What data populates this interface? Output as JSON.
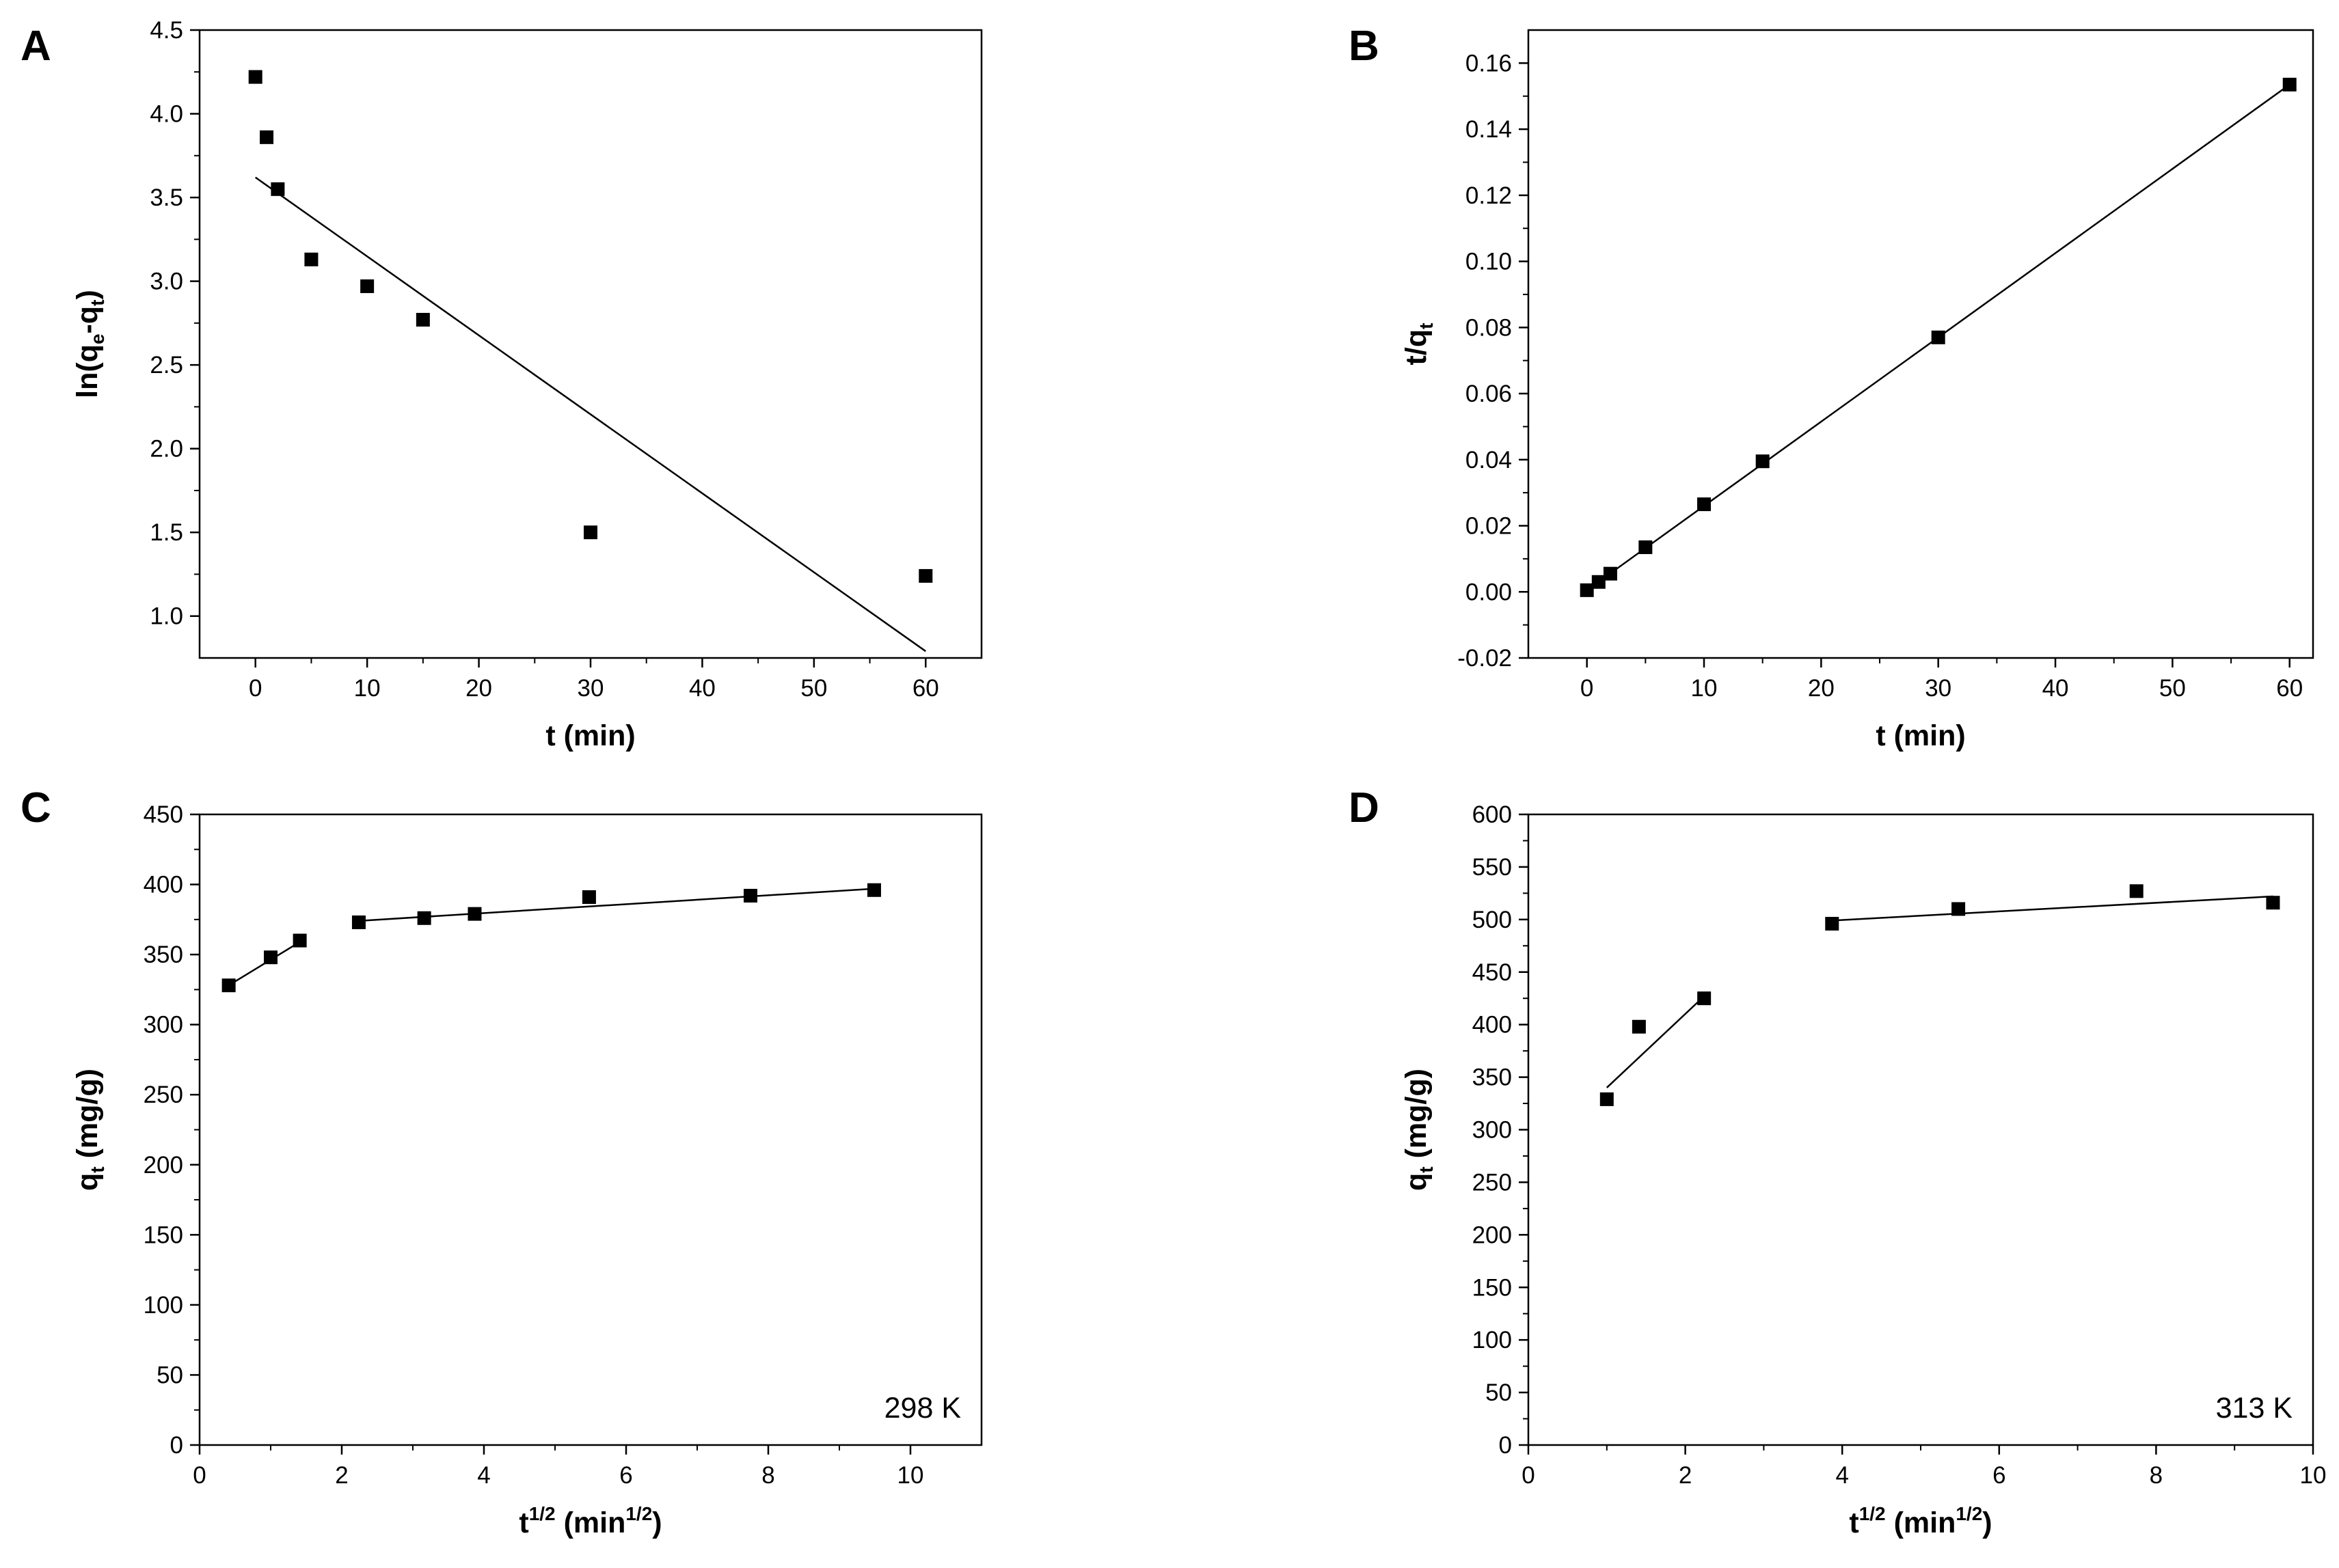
{
  "figure": {
    "background": "#ffffff",
    "marker_color": "#000000",
    "line_color": "#000000"
  },
  "chart_data": [
    {
      "panel": "A",
      "type": "scatter",
      "xlabel": "t (min)",
      "ylabel_main": "ln(q",
      "ylabel_sub1": "e",
      "ylabel_mid": "-q",
      "ylabel_sub2": "t",
      "ylabel_end": ")",
      "xlim": [
        -5,
        65
      ],
      "ylim": [
        0.75,
        4.5
      ],
      "xticks": [
        0,
        10,
        20,
        30,
        40,
        50,
        60
      ],
      "yticks": [
        1.0,
        1.5,
        2.0,
        2.5,
        3.0,
        3.5,
        4.0,
        4.5
      ],
      "ytick_decimals": 1,
      "points": [
        {
          "x": 0,
          "y": 4.22
        },
        {
          "x": 1,
          "y": 3.86
        },
        {
          "x": 2,
          "y": 3.55
        },
        {
          "x": 5,
          "y": 3.13
        },
        {
          "x": 10,
          "y": 2.97
        },
        {
          "x": 15,
          "y": 2.77
        },
        {
          "x": 30,
          "y": 1.5
        },
        {
          "x": 60,
          "y": 1.24
        }
      ],
      "fit_lines": [
        {
          "x": [
            0,
            60
          ],
          "y": [
            3.62,
            0.79
          ]
        }
      ],
      "annotation": ""
    },
    {
      "panel": "B",
      "type": "scatter",
      "xlabel": "t (min)",
      "ylabel_main": "t/q",
      "ylabel_sub1": "t",
      "ylabel_mid": "",
      "ylabel_sub2": "",
      "ylabel_end": "",
      "xlim": [
        -5,
        62
      ],
      "ylim": [
        -0.02,
        0.17
      ],
      "xticks": [
        0,
        10,
        20,
        30,
        40,
        50,
        60
      ],
      "yticks": [
        -0.02,
        0.0,
        0.02,
        0.04,
        0.06,
        0.08,
        0.1,
        0.12,
        0.14,
        0.16
      ],
      "ytick_decimals": 2,
      "points": [
        {
          "x": 0,
          "y": 0.0005
        },
        {
          "x": 1,
          "y": 0.003
        },
        {
          "x": 2,
          "y": 0.0055
        },
        {
          "x": 5,
          "y": 0.0135
        },
        {
          "x": 10,
          "y": 0.0265
        },
        {
          "x": 15,
          "y": 0.0395
        },
        {
          "x": 30,
          "y": 0.077
        },
        {
          "x": 60,
          "y": 0.1535
        }
      ],
      "fit_lines": [
        {
          "x": [
            0,
            60
          ],
          "y": [
            0.0005,
            0.1535
          ]
        }
      ],
      "annotation": ""
    },
    {
      "panel": "C",
      "type": "scatter",
      "xlabel_main": "t",
      "xlabel_sup": "1/2",
      "xlabel_mid": " (min",
      "xlabel_sup2": "1/2",
      "xlabel_end": ")",
      "ylabel_main": "q",
      "ylabel_sub1": "t",
      "ylabel_mid": " (mg/g)",
      "ylabel_sub2": "",
      "ylabel_end": "",
      "xlim": [
        0,
        11
      ],
      "ylim": [
        0,
        450
      ],
      "xticks": [
        0,
        2,
        4,
        6,
        8,
        10
      ],
      "yticks": [
        0,
        50,
        100,
        150,
        200,
        250,
        300,
        350,
        400,
        450
      ],
      "ytick_decimals": 0,
      "points": [
        {
          "x": 0.41,
          "y": 328
        },
        {
          "x": 1.0,
          "y": 348
        },
        {
          "x": 1.41,
          "y": 360
        },
        {
          "x": 2.24,
          "y": 373
        },
        {
          "x": 3.16,
          "y": 376
        },
        {
          "x": 3.87,
          "y": 379
        },
        {
          "x": 5.48,
          "y": 391
        },
        {
          "x": 7.75,
          "y": 392
        },
        {
          "x": 9.49,
          "y": 396
        }
      ],
      "fit_lines": [
        {
          "x": [
            0.41,
            1.41
          ],
          "y": [
            328,
            359
          ]
        },
        {
          "x": [
            2.24,
            9.49
          ],
          "y": [
            374,
            397
          ]
        }
      ],
      "annotation": "298 K"
    },
    {
      "panel": "D",
      "type": "scatter",
      "xlabel_main": "t",
      "xlabel_sup": "1/2",
      "xlabel_mid": " (min",
      "xlabel_sup2": "1/2",
      "xlabel_end": ")",
      "ylabel_main": "q",
      "ylabel_sub1": "t",
      "ylabel_mid": " (mg/g)",
      "ylabel_sub2": "",
      "ylabel_end": "",
      "xlim": [
        0,
        10
      ],
      "ylim": [
        0,
        600
      ],
      "xticks": [
        0,
        2,
        4,
        6,
        8,
        10
      ],
      "yticks": [
        0,
        50,
        100,
        150,
        200,
        250,
        300,
        350,
        400,
        450,
        500,
        550,
        600
      ],
      "ytick_decimals": 0,
      "points": [
        {
          "x": 1.0,
          "y": 329
        },
        {
          "x": 1.41,
          "y": 398
        },
        {
          "x": 2.24,
          "y": 425
        },
        {
          "x": 3.87,
          "y": 496
        },
        {
          "x": 5.48,
          "y": 510
        },
        {
          "x": 7.75,
          "y": 527
        },
        {
          "x": 9.49,
          "y": 516
        }
      ],
      "fit_lines": [
        {
          "x": [
            1.0,
            2.24
          ],
          "y": [
            340,
            427
          ]
        },
        {
          "x": [
            3.87,
            9.49
          ],
          "y": [
            499,
            522
          ]
        }
      ],
      "annotation": "313 K"
    }
  ]
}
